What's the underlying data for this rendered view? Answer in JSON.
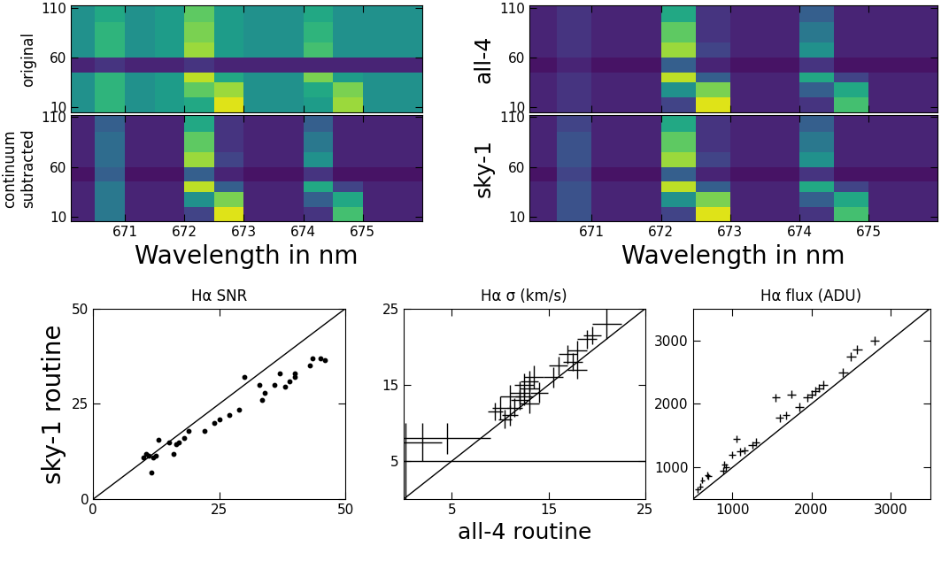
{
  "chart_data": [
    {
      "type": "heatmap",
      "ylabel": "original",
      "color": "viridis",
      "color_range": [
        0,
        1
      ],
      "x_edges": [
        670.0,
        670.5,
        671.0,
        671.5,
        672.0,
        672.5,
        673.0,
        673.5,
        674.0,
        674.5,
        675.0,
        675.5,
        676.0
      ],
      "y_edges": [
        5,
        20,
        35,
        45,
        60,
        75,
        95,
        112
      ],
      "cells": [
        [
          0.5,
          0.65,
          0.5,
          0.55,
          0.6,
          0.95,
          0.5,
          0.5,
          0.55,
          0.85,
          0.5,
          0.5
        ],
        [
          0.5,
          0.65,
          0.5,
          0.55,
          0.75,
          0.85,
          0.5,
          0.5,
          0.6,
          0.8,
          0.5,
          0.5
        ],
        [
          0.5,
          0.65,
          0.5,
          0.55,
          0.9,
          0.6,
          0.5,
          0.5,
          0.8,
          0.55,
          0.5,
          0.5
        ],
        [
          0.1,
          0.15,
          0.1,
          0.1,
          0.15,
          0.1,
          0.1,
          0.1,
          0.1,
          0.1,
          0.1,
          0.1
        ],
        [
          0.5,
          0.65,
          0.5,
          0.55,
          0.85,
          0.55,
          0.5,
          0.5,
          0.7,
          0.5,
          0.5,
          0.5
        ],
        [
          0.5,
          0.65,
          0.5,
          0.55,
          0.8,
          0.55,
          0.5,
          0.5,
          0.65,
          0.5,
          0.5,
          0.5
        ],
        [
          0.5,
          0.6,
          0.5,
          0.55,
          0.75,
          0.55,
          0.5,
          0.5,
          0.6,
          0.5,
          0.5,
          0.5
        ]
      ],
      "xlim": [
        670.1,
        676.0
      ],
      "ylim": [
        5,
        112
      ],
      "xticks": [
        671,
        672,
        673,
        674,
        675
      ],
      "yticks": [
        10,
        60,
        110
      ],
      "tick_labels": "y"
    },
    {
      "type": "heatmap",
      "ylabel": "continuum\nsubtracted",
      "xlabel": "Wavelength in nm",
      "color": "viridis",
      "color_range": [
        0,
        1
      ],
      "x_edges": [
        670.0,
        670.5,
        671.0,
        671.5,
        672.0,
        672.5,
        673.0,
        673.5,
        674.0,
        674.5,
        675.0,
        675.5,
        676.0
      ],
      "y_edges": [
        5,
        20,
        35,
        45,
        60,
        75,
        95,
        112
      ],
      "cells": [
        [
          0.1,
          0.4,
          0.1,
          0.1,
          0.2,
          0.95,
          0.1,
          0.1,
          0.15,
          0.7,
          0.1,
          0.1
        ],
        [
          0.1,
          0.4,
          0.1,
          0.1,
          0.5,
          0.8,
          0.1,
          0.1,
          0.3,
          0.6,
          0.1,
          0.1
        ],
        [
          0.1,
          0.4,
          0.1,
          0.1,
          0.9,
          0.3,
          0.1,
          0.1,
          0.6,
          0.2,
          0.1,
          0.1
        ],
        [
          0.05,
          0.3,
          0.05,
          0.05,
          0.3,
          0.1,
          0.05,
          0.05,
          0.15,
          0.05,
          0.05,
          0.05
        ],
        [
          0.1,
          0.35,
          0.1,
          0.1,
          0.85,
          0.2,
          0.1,
          0.1,
          0.5,
          0.1,
          0.1,
          0.1
        ],
        [
          0.1,
          0.35,
          0.1,
          0.1,
          0.75,
          0.15,
          0.1,
          0.1,
          0.4,
          0.1,
          0.1,
          0.1
        ],
        [
          0.1,
          0.3,
          0.1,
          0.1,
          0.6,
          0.15,
          0.1,
          0.1,
          0.3,
          0.1,
          0.1,
          0.1
        ]
      ],
      "xlim": [
        670.1,
        676.0
      ],
      "ylim": [
        5,
        112
      ],
      "xticks": [
        671,
        672,
        673,
        674,
        675
      ],
      "yticks": [
        10,
        60,
        110
      ]
    },
    {
      "type": "heatmap",
      "ylabel": "all-4",
      "color": "viridis",
      "color_range": [
        0,
        1
      ],
      "x_edges": [
        670.0,
        670.5,
        671.0,
        671.5,
        672.0,
        672.5,
        673.0,
        673.5,
        674.0,
        674.5,
        675.0,
        675.5,
        676.0
      ],
      "y_edges": [
        5,
        20,
        35,
        45,
        60,
        75,
        95,
        112
      ],
      "cells": [
        [
          0.1,
          0.15,
          0.1,
          0.1,
          0.2,
          0.95,
          0.1,
          0.1,
          0.15,
          0.7,
          0.1,
          0.1
        ],
        [
          0.1,
          0.15,
          0.1,
          0.1,
          0.5,
          0.8,
          0.1,
          0.1,
          0.3,
          0.6,
          0.1,
          0.1
        ],
        [
          0.1,
          0.15,
          0.1,
          0.1,
          0.9,
          0.3,
          0.1,
          0.1,
          0.6,
          0.2,
          0.1,
          0.1
        ],
        [
          0.05,
          0.1,
          0.05,
          0.05,
          0.3,
          0.1,
          0.05,
          0.05,
          0.15,
          0.05,
          0.05,
          0.05
        ],
        [
          0.1,
          0.15,
          0.1,
          0.1,
          0.85,
          0.2,
          0.1,
          0.1,
          0.5,
          0.1,
          0.1,
          0.1
        ],
        [
          0.1,
          0.15,
          0.1,
          0.1,
          0.75,
          0.15,
          0.1,
          0.1,
          0.4,
          0.1,
          0.1,
          0.1
        ],
        [
          0.1,
          0.15,
          0.1,
          0.1,
          0.6,
          0.15,
          0.1,
          0.1,
          0.3,
          0.1,
          0.1,
          0.1
        ]
      ],
      "xlim": [
        670.1,
        676.0
      ],
      "ylim": [
        5,
        112
      ],
      "xticks": [
        671,
        672,
        673,
        674,
        675
      ],
      "yticks": [
        10,
        60,
        110
      ],
      "tick_labels": "y"
    },
    {
      "type": "heatmap",
      "ylabel": "sky-1",
      "xlabel": "Wavelength in nm",
      "color": "viridis",
      "color_range": [
        0,
        1
      ],
      "x_edges": [
        670.0,
        670.5,
        671.0,
        671.5,
        672.0,
        672.5,
        673.0,
        673.5,
        674.0,
        674.5,
        675.0,
        675.5,
        676.0
      ],
      "y_edges": [
        5,
        20,
        35,
        45,
        60,
        75,
        95,
        112
      ],
      "cells": [
        [
          0.1,
          0.25,
          0.1,
          0.1,
          0.2,
          0.95,
          0.1,
          0.1,
          0.15,
          0.7,
          0.1,
          0.1
        ],
        [
          0.1,
          0.25,
          0.1,
          0.1,
          0.5,
          0.8,
          0.1,
          0.1,
          0.3,
          0.6,
          0.1,
          0.1
        ],
        [
          0.1,
          0.25,
          0.1,
          0.1,
          0.9,
          0.3,
          0.1,
          0.1,
          0.6,
          0.2,
          0.1,
          0.1
        ],
        [
          0.05,
          0.2,
          0.05,
          0.05,
          0.3,
          0.1,
          0.05,
          0.05,
          0.15,
          0.05,
          0.05,
          0.05
        ],
        [
          0.1,
          0.25,
          0.1,
          0.1,
          0.85,
          0.2,
          0.1,
          0.1,
          0.5,
          0.1,
          0.1,
          0.1
        ],
        [
          0.1,
          0.25,
          0.1,
          0.1,
          0.75,
          0.15,
          0.1,
          0.1,
          0.4,
          0.1,
          0.1,
          0.1
        ],
        [
          0.1,
          0.2,
          0.1,
          0.1,
          0.6,
          0.15,
          0.1,
          0.1,
          0.3,
          0.1,
          0.1,
          0.1
        ]
      ],
      "xlim": [
        670.1,
        676.0
      ],
      "ylim": [
        5,
        112
      ],
      "xticks": [
        671,
        672,
        673,
        674,
        675
      ],
      "yticks": [
        10,
        60,
        110
      ]
    },
    {
      "type": "scatter",
      "title": "Hα SNR",
      "ylabel": "sky-1 routine",
      "marker": "dot",
      "color": "#000000",
      "x": [
        10,
        10.5,
        11,
        11.5,
        12,
        12.5,
        13,
        15,
        16,
        16.5,
        17,
        18,
        19,
        22,
        24,
        25,
        27,
        29,
        30,
        33,
        33.5,
        34,
        36,
        37,
        38,
        39,
        40,
        40,
        43,
        43.5,
        45,
        46
      ],
      "y": [
        11,
        12,
        11.5,
        7,
        11,
        11.5,
        15.5,
        15,
        12,
        14.5,
        15,
        16,
        18,
        18,
        20,
        21,
        22,
        23.5,
        32,
        30,
        26,
        28,
        30,
        33,
        29.5,
        31,
        32,
        33,
        35,
        37,
        37,
        36.5
      ],
      "xlim": [
        0,
        50
      ],
      "ylim": [
        0,
        50
      ],
      "xticks": [
        0,
        25,
        50
      ],
      "yticks": [
        0,
        25,
        50
      ]
    },
    {
      "type": "scatter",
      "title": "Hα σ (km/s)",
      "xlabel": "all-4 routine",
      "marker": "none",
      "color": "#000000",
      "x": [
        2,
        4.5,
        0.2,
        9.5,
        10,
        10.5,
        11,
        11,
        11.5,
        12,
        12,
        12.5,
        12.5,
        13,
        13,
        13.5,
        13,
        14,
        15.5,
        16,
        17,
        17.5,
        18,
        18,
        19,
        19.5,
        21
      ],
      "y": [
        7.5,
        8,
        5,
        11.5,
        12,
        10.5,
        11,
        13.5,
        12,
        14,
        13,
        15,
        13.5,
        14.5,
        15.5,
        16,
        12.5,
        14,
        16,
        17.5,
        19,
        18,
        19.5,
        17,
        21,
        21.5,
        23
      ],
      "x_errors": [
        2,
        4.5,
        25,
        0.8,
        0.8,
        0.7,
        0.8,
        1,
        0.8,
        1,
        0.9,
        1,
        0.9,
        1,
        0.9,
        1,
        1,
        0.9,
        1,
        1,
        1,
        1,
        1,
        1,
        1,
        0.9,
        1.5
      ],
      "y_errors": [
        2.5,
        2,
        5,
        1.2,
        1.5,
        1.2,
        1.3,
        1.5,
        1.2,
        1.5,
        1.3,
        1.5,
        1.2,
        1.4,
        1.3,
        1.5,
        1.2,
        1.3,
        1.3,
        1.2,
        1.2,
        1.2,
        1.3,
        1.2,
        1.2,
        1.2,
        2
      ],
      "xlim": [
        0,
        25
      ],
      "ylim": [
        0,
        25
      ],
      "xticks": [
        5,
        15,
        25
      ],
      "yticks": [
        5,
        15,
        25
      ]
    },
    {
      "type": "scatter",
      "title": "Hα flux (ADU)",
      "marker": "none",
      "color": "#000000",
      "x": [
        560,
        600,
        620,
        680,
        700,
        880,
        900,
        920,
        1000,
        1050,
        1100,
        1150,
        1250,
        1300,
        1550,
        1600,
        1680,
        1750,
        1850,
        1950,
        2000,
        2050,
        2100,
        2150,
        2400,
        2500,
        2580,
        2800
      ],
      "y": [
        650,
        700,
        800,
        880,
        860,
        950,
        1050,
        1000,
        1200,
        1450,
        1250,
        1270,
        1350,
        1400,
        2100,
        1780,
        1820,
        2150,
        1950,
        2100,
        2150,
        2200,
        2250,
        2300,
        2500,
        2750,
        2850,
        3000
      ],
      "x_errors": [
        30,
        30,
        30,
        35,
        35,
        40,
        40,
        40,
        45,
        45,
        45,
        45,
        50,
        50,
        50,
        50,
        50,
        55,
        55,
        55,
        55,
        55,
        55,
        55,
        60,
        60,
        60,
        60
      ],
      "y_errors": [
        50,
        50,
        50,
        50,
        50,
        55,
        55,
        55,
        60,
        60,
        60,
        60,
        60,
        60,
        65,
        65,
        65,
        65,
        65,
        65,
        65,
        65,
        65,
        65,
        70,
        70,
        70,
        70
      ],
      "xlim": [
        500,
        3500
      ],
      "ylim": [
        500,
        3500
      ],
      "xticks": [
        1000,
        2000,
        3000
      ],
      "yticks": [
        1000,
        2000,
        3000
      ]
    }
  ]
}
